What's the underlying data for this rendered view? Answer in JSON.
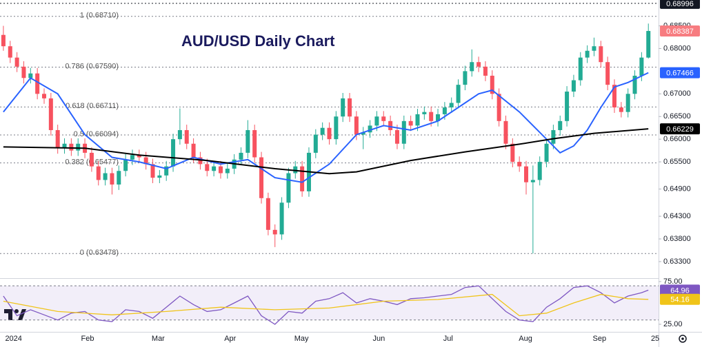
{
  "chart_data": [
    {
      "type": "candlestick",
      "title": "AUD/USD Daily Chart",
      "open": [
        0.683,
        0.6805,
        0.678,
        0.676,
        0.6735,
        0.6745,
        0.67,
        0.669,
        0.662,
        0.658,
        0.659,
        0.6575,
        0.659,
        0.657,
        0.654,
        0.651,
        0.6525,
        0.65,
        0.653,
        0.6555,
        0.6565,
        0.656,
        0.6545,
        0.6515,
        0.652,
        0.654,
        0.66,
        0.662,
        0.659,
        0.656,
        0.6545,
        0.653,
        0.654,
        0.6525,
        0.6535,
        0.6555,
        0.657,
        0.662,
        0.656,
        0.647,
        0.64,
        0.639,
        0.646,
        0.6525,
        0.654,
        0.6485,
        0.657,
        0.661,
        0.6625,
        0.66,
        0.665,
        0.669,
        0.665,
        0.661,
        0.6615,
        0.663,
        0.665,
        0.664,
        0.662,
        0.659,
        0.664,
        0.663,
        0.6655,
        0.666,
        0.664,
        0.6655,
        0.667,
        0.668,
        0.672,
        0.675,
        0.677,
        0.676,
        0.674,
        0.67,
        0.664,
        0.659,
        0.655,
        0.654,
        0.6505,
        0.651,
        0.655,
        0.659,
        0.662,
        0.664,
        0.6705,
        0.673,
        0.678,
        0.6795,
        0.6805,
        0.677,
        0.672,
        0.667,
        0.666,
        0.67,
        0.674,
        0.678
      ],
      "high": [
        0.685,
        0.6817,
        0.6792,
        0.6772,
        0.6757,
        0.6757,
        0.6712,
        0.6702,
        0.6632,
        0.6602,
        0.6602,
        0.6602,
        0.6602,
        0.6582,
        0.6552,
        0.6537,
        0.6537,
        0.6542,
        0.6567,
        0.6577,
        0.6577,
        0.6572,
        0.6557,
        0.6532,
        0.6552,
        0.6612,
        0.6668,
        0.6632,
        0.6602,
        0.6572,
        0.6557,
        0.6552,
        0.6552,
        0.6547,
        0.6567,
        0.6582,
        0.6642,
        0.6632,
        0.6572,
        0.6482,
        0.6412,
        0.6472,
        0.6537,
        0.6552,
        0.6552,
        0.6582,
        0.6622,
        0.6637,
        0.6637,
        0.6662,
        0.6702,
        0.6702,
        0.6662,
        0.6627,
        0.6642,
        0.6662,
        0.6662,
        0.6652,
        0.6632,
        0.6652,
        0.6652,
        0.6667,
        0.6672,
        0.6672,
        0.6667,
        0.6682,
        0.6692,
        0.6732,
        0.6762,
        0.6798,
        0.6782,
        0.6772,
        0.6752,
        0.6712,
        0.6652,
        0.6602,
        0.6562,
        0.6552,
        0.6542,
        0.6562,
        0.6602,
        0.6632,
        0.6652,
        0.6717,
        0.6742,
        0.6792,
        0.6807,
        0.6824,
        0.6817,
        0.6782,
        0.6732,
        0.6682,
        0.6712,
        0.6752,
        0.6792,
        0.6855
      ],
      "low": [
        0.6795,
        0.6768,
        0.6748,
        0.6723,
        0.6723,
        0.6688,
        0.6678,
        0.6608,
        0.6568,
        0.6568,
        0.6563,
        0.6563,
        0.6558,
        0.6528,
        0.6498,
        0.6498,
        0.6478,
        0.6488,
        0.6518,
        0.6543,
        0.6548,
        0.6533,
        0.6503,
        0.6503,
        0.6508,
        0.6528,
        0.6588,
        0.6578,
        0.6548,
        0.6533,
        0.6518,
        0.6518,
        0.6513,
        0.6513,
        0.6523,
        0.6543,
        0.6558,
        0.6548,
        0.6458,
        0.6388,
        0.6362,
        0.6378,
        0.6448,
        0.6513,
        0.6473,
        0.6473,
        0.6558,
        0.6598,
        0.6588,
        0.6588,
        0.6638,
        0.6638,
        0.6598,
        0.6578,
        0.6603,
        0.6618,
        0.6628,
        0.6608,
        0.6578,
        0.6578,
        0.6618,
        0.6618,
        0.6643,
        0.6628,
        0.6628,
        0.6643,
        0.6658,
        0.6668,
        0.6708,
        0.6738,
        0.6748,
        0.6728,
        0.6688,
        0.6628,
        0.6578,
        0.6538,
        0.6528,
        0.6478,
        0.6348,
        0.6498,
        0.6538,
        0.6578,
        0.6608,
        0.6628,
        0.6693,
        0.6718,
        0.6768,
        0.6783,
        0.6758,
        0.6708,
        0.6658,
        0.6648,
        0.6648,
        0.6688,
        0.6728,
        0.6778
      ],
      "close": [
        0.6805,
        0.678,
        0.676,
        0.6735,
        0.6745,
        0.67,
        0.669,
        0.662,
        0.658,
        0.659,
        0.6575,
        0.659,
        0.657,
        0.654,
        0.651,
        0.6525,
        0.65,
        0.653,
        0.6555,
        0.6565,
        0.656,
        0.6545,
        0.6515,
        0.652,
        0.654,
        0.66,
        0.662,
        0.659,
        0.656,
        0.6545,
        0.653,
        0.654,
        0.6525,
        0.6535,
        0.6555,
        0.657,
        0.662,
        0.656,
        0.647,
        0.64,
        0.639,
        0.646,
        0.6525,
        0.654,
        0.6485,
        0.657,
        0.661,
        0.6625,
        0.66,
        0.665,
        0.669,
        0.665,
        0.661,
        0.6615,
        0.663,
        0.665,
        0.664,
        0.662,
        0.659,
        0.664,
        0.663,
        0.6655,
        0.666,
        0.664,
        0.6655,
        0.667,
        0.668,
        0.672,
        0.675,
        0.677,
        0.676,
        0.674,
        0.67,
        0.664,
        0.659,
        0.655,
        0.654,
        0.6505,
        0.651,
        0.655,
        0.659,
        0.662,
        0.664,
        0.6705,
        0.673,
        0.678,
        0.6795,
        0.6805,
        0.677,
        0.672,
        0.667,
        0.666,
        0.67,
        0.674,
        0.678,
        0.68387
      ],
      "up_color": "#22ab94",
      "down_color": "#f7525f",
      "close_tag_color": "#f77c80",
      "xlim": [
        -0.5,
        96.5
      ],
      "ylim": [
        0.6295,
        0.6907
      ],
      "yticks": [
        {
          "value": 0.685,
          "label": "0.68500"
        },
        {
          "value": 0.68,
          "label": "0.68000"
        },
        {
          "value": 0.67,
          "label": "0.67000"
        },
        {
          "value": 0.665,
          "label": "0.66500"
        },
        {
          "value": 0.66,
          "label": "0.66000"
        },
        {
          "value": 0.655,
          "label": "0.65500"
        },
        {
          "value": 0.649,
          "label": "0.64900"
        },
        {
          "value": 0.643,
          "label": "0.64300"
        },
        {
          "value": 0.638,
          "label": "0.63800"
        },
        {
          "value": 0.633,
          "label": "0.63300"
        }
      ],
      "xticks": [
        {
          "value": 1.5,
          "label": "2024"
        },
        {
          "value": 12.4,
          "label": "Feb"
        },
        {
          "value": 22.8,
          "label": "Mar"
        },
        {
          "value": 33.4,
          "label": "Apr"
        },
        {
          "value": 43.9,
          "label": "May"
        },
        {
          "value": 55.3,
          "label": "Jun"
        },
        {
          "value": 65.5,
          "label": "Jul"
        },
        {
          "value": 76.9,
          "label": "Aug"
        },
        {
          "value": 87.8,
          "label": "Sep"
        },
        {
          "value": 96.0,
          "label": "25"
        }
      ],
      "lines": [
        {
          "color": "#2962ff",
          "x": [
            0,
            4,
            8,
            12,
            16,
            20,
            24,
            28,
            32,
            36,
            40,
            44,
            48,
            52,
            56,
            60,
            64,
            68,
            70,
            72,
            76,
            80,
            82,
            84,
            86,
            88,
            90,
            92,
            95
          ],
          "values": [
            0.666,
            0.6735,
            0.67,
            0.661,
            0.656,
            0.655,
            0.6535,
            0.656,
            0.6545,
            0.6555,
            0.6515,
            0.6505,
            0.6545,
            0.661,
            0.663,
            0.662,
            0.664,
            0.668,
            0.67,
            0.6708,
            0.666,
            0.66,
            0.657,
            0.6585,
            0.662,
            0.667,
            0.6715,
            0.6725,
            0.67466
          ]
        },
        {
          "color": "#000000",
          "x": [
            0,
            12,
            20,
            30,
            40,
            48,
            52,
            60,
            68,
            76,
            81,
            87,
            95
          ],
          "values": [
            0.6583,
            0.658,
            0.6565,
            0.6553,
            0.6535,
            0.6524,
            0.6528,
            0.6553,
            0.6572,
            0.6589,
            0.6601,
            0.6613,
            0.66229
          ]
        }
      ],
      "levels": [
        {
          "value": 0.6871,
          "label": "1 (0.68710)"
        },
        {
          "value": 0.6759,
          "label": "0.786 (0.67590)"
        },
        {
          "value": 0.66711,
          "label": "0.618 (0.66711)"
        },
        {
          "value": 0.66094,
          "label": "0.5 (0.66094)"
        },
        {
          "value": 0.65477,
          "label": "0.382 (0.65477)"
        },
        {
          "value": 0.63478,
          "label": "0 (0.63478)"
        }
      ],
      "marker": {
        "value": 0.68996,
        "color": "#131722"
      }
    },
    {
      "type": "line",
      "series": [
        {
          "color": "#7e57c2",
          "x": [
            0,
            2,
            4,
            6,
            8,
            10,
            12,
            14,
            16,
            18,
            20,
            22,
            24,
            26,
            28,
            30,
            32,
            34,
            36,
            38,
            40,
            42,
            44,
            46,
            48,
            50,
            52,
            54,
            56,
            58,
            60,
            62,
            64,
            66,
            68,
            70,
            72,
            74,
            76,
            78,
            80,
            82,
            84,
            86,
            88,
            90,
            92,
            94,
            95
          ],
          "values": [
            58,
            35,
            42,
            36,
            30,
            38,
            40,
            30,
            28,
            42,
            40,
            32,
            45,
            58,
            48,
            40,
            42,
            50,
            58,
            35,
            25,
            40,
            38,
            52,
            55,
            62,
            50,
            55,
            52,
            48,
            55,
            56,
            58,
            60,
            68,
            70,
            55,
            40,
            30,
            28,
            45,
            55,
            68,
            70,
            62,
            50,
            58,
            62,
            64.96
          ]
        },
        {
          "color": "#f0c419",
          "x": [
            0,
            8,
            16,
            24,
            32,
            40,
            48,
            56,
            64,
            72,
            76,
            80,
            84,
            88,
            92,
            95
          ],
          "values": [
            52,
            40,
            36,
            40,
            45,
            42,
            44,
            52,
            54,
            60,
            35,
            38,
            50,
            60,
            55,
            54.16
          ]
        }
      ],
      "xlim": [
        -0.5,
        96.5
      ],
      "ylim": [
        16.1,
        78.2
      ],
      "band": [
        30,
        70
      ],
      "yticks": [
        {
          "value": 75,
          "label": "75.00"
        },
        {
          "value": 25,
          "label": "25.00"
        }
      ]
    }
  ]
}
